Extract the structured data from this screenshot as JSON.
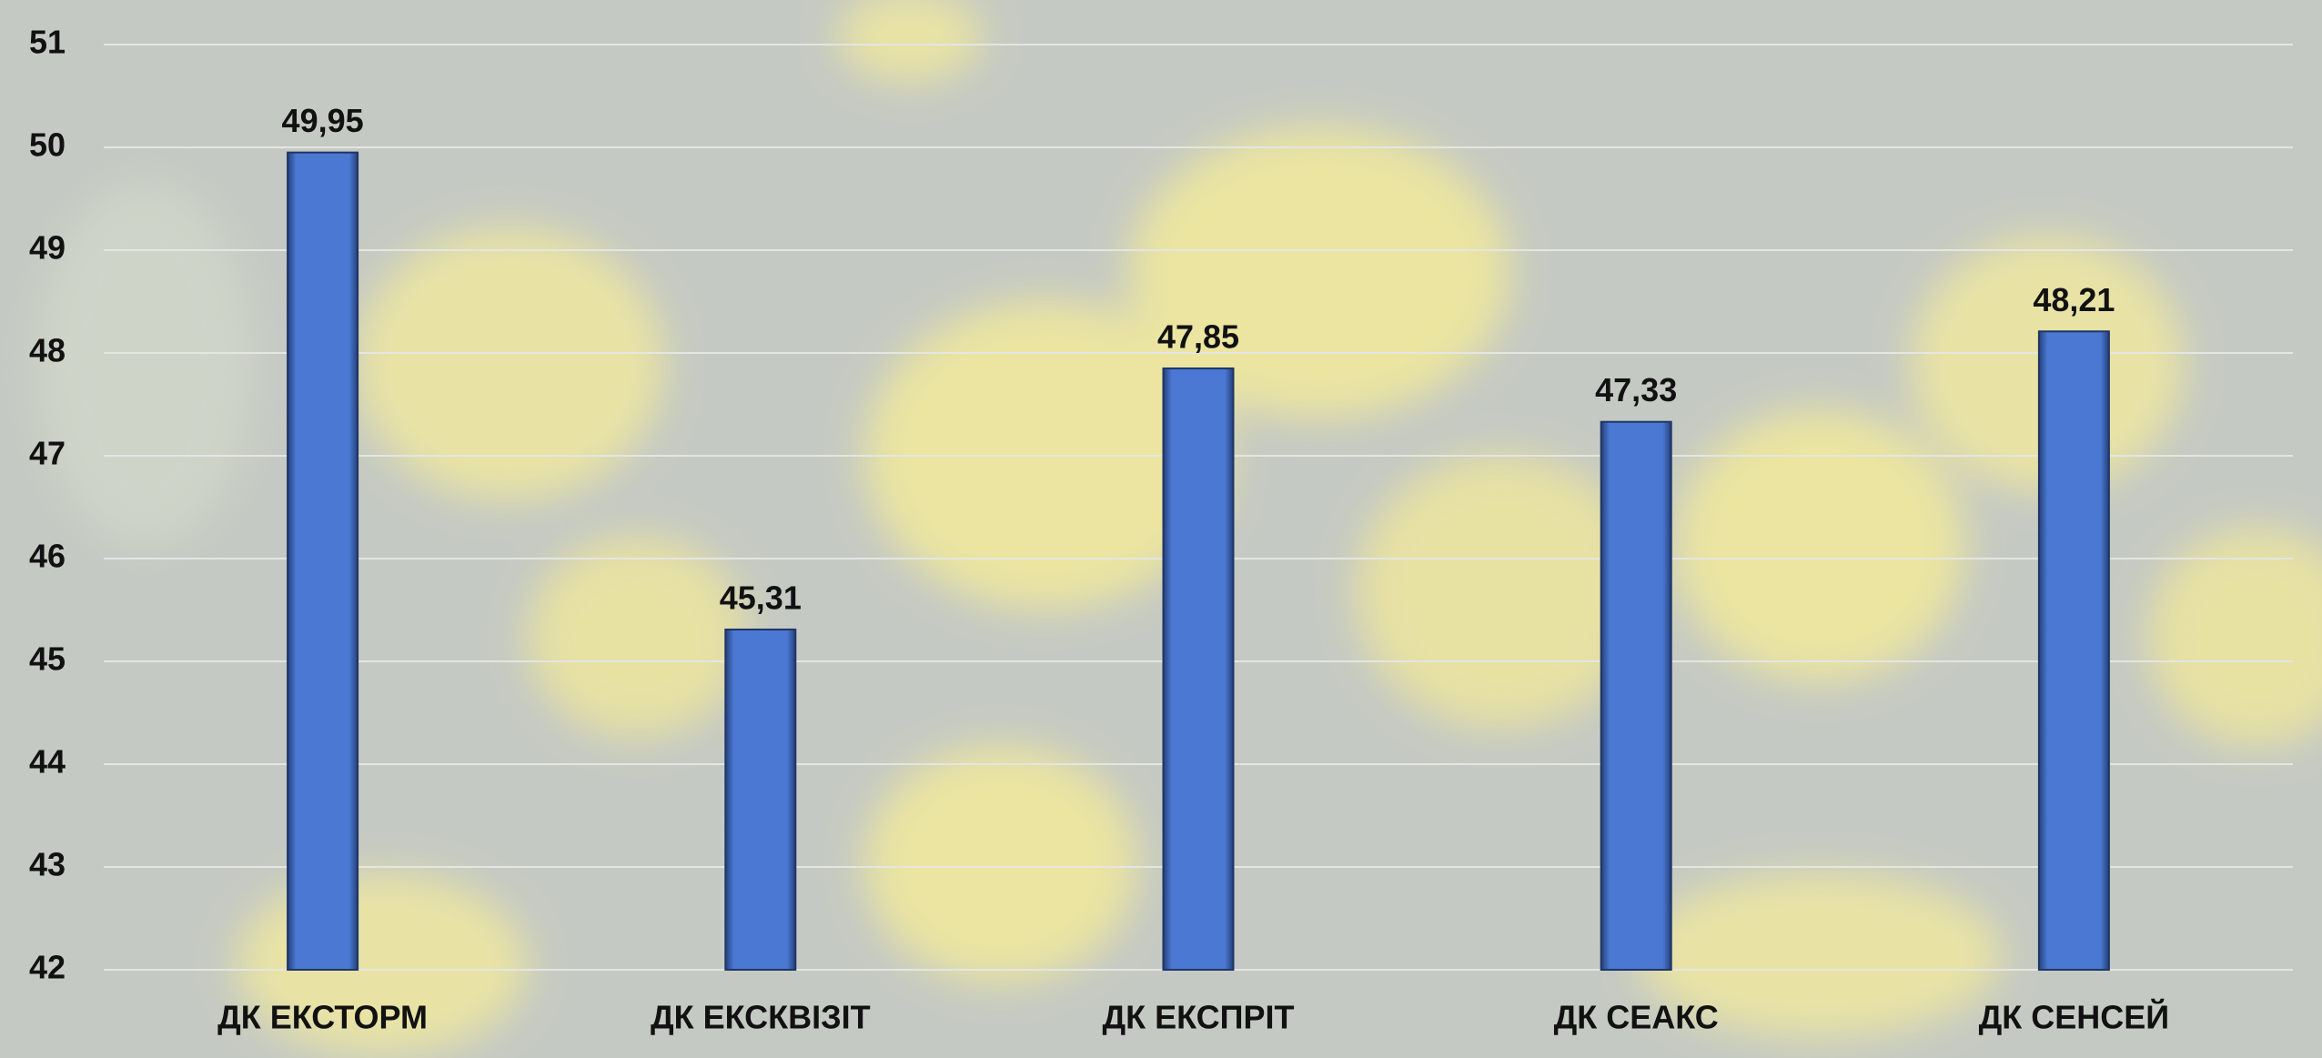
{
  "chart_data": {
    "type": "bar",
    "categories": [
      "ДК ЕКСТОРМ",
      "ДК ЕКСКВІЗІТ",
      "ДК ЕКСПРІТ",
      "ДК СЕАКС",
      "ДК СЕНСЕЙ"
    ],
    "values": [
      49.95,
      45.31,
      47.85,
      47.33,
      48.21
    ],
    "value_labels": [
      "49,95",
      "45,31",
      "47,85",
      "47,33",
      "48,21"
    ],
    "color": "#4a78d2",
    "ylim": [
      42,
      51
    ],
    "yticks": [
      42,
      43,
      44,
      45,
      46,
      47,
      48,
      49,
      50,
      51
    ],
    "grid": true
  }
}
